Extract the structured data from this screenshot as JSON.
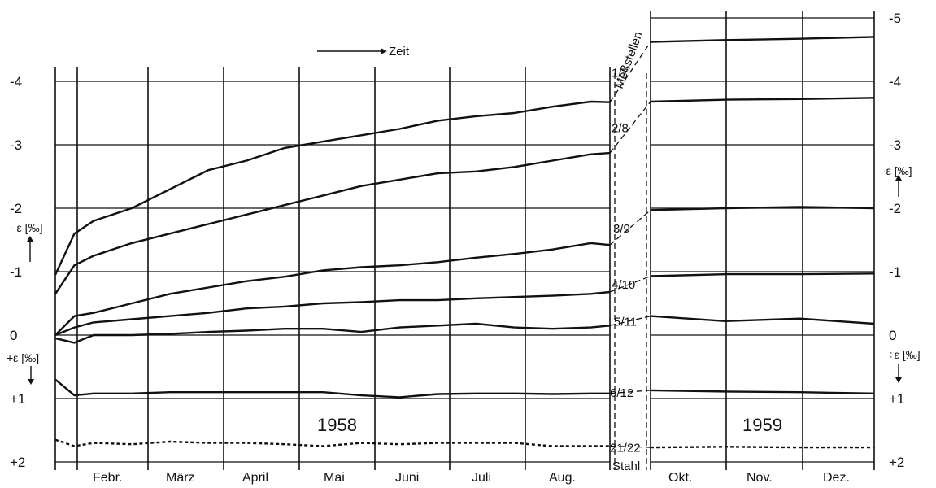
{
  "chart_data": {
    "type": "line",
    "title": "",
    "y_axis": {
      "range": [
        -5,
        2
      ],
      "inverted_note": "negative values plotted upward",
      "ticks_left": [
        "-4",
        "-3",
        "-2",
        "-1",
        "0",
        "+1",
        "+2"
      ],
      "ticks_right": [
        "-5",
        "-4",
        "-3",
        "-2",
        "-1",
        "0",
        "+1",
        "+2"
      ],
      "label_left_upper": "- ε [‰]",
      "label_left_lower": "+ε [‰]",
      "label_right_upper": "-ε [‰]",
      "label_right_lower": "÷ε [‰]"
    },
    "time_arrow_label": "Zeit",
    "months_1958": [
      "Febr.",
      "März",
      "April",
      "Mai",
      "Juni",
      "Juli",
      "Aug."
    ],
    "months_1959": [
      "Okt.",
      "Nov.",
      "Dez."
    ],
    "years": [
      "1958",
      "1959"
    ],
    "measuring_points_label": "Meßstellen",
    "steel_label": "Stahl",
    "series": [
      {
        "name": "1/7",
        "period_1958": [
          [
            0,
            -0.95
          ],
          [
            0.5,
            -1.6
          ],
          [
            1,
            -1.8
          ],
          [
            2,
            -2.0
          ],
          [
            3,
            -2.3
          ],
          [
            4,
            -2.6
          ],
          [
            5,
            -2.75
          ],
          [
            6,
            -2.95
          ],
          [
            7,
            -3.05
          ],
          [
            8,
            -3.15
          ],
          [
            9,
            -3.25
          ],
          [
            10,
            -3.38
          ],
          [
            11,
            -3.45
          ],
          [
            12,
            -3.5
          ],
          [
            13,
            -3.6
          ],
          [
            14,
            -3.68
          ],
          [
            14.5,
            -3.67
          ]
        ],
        "period_1959": [
          [
            0,
            -4.62
          ],
          [
            1,
            -4.65
          ],
          [
            2,
            -4.67
          ],
          [
            3,
            -4.7
          ]
        ]
      },
      {
        "name": "2/8",
        "period_1958": [
          [
            0,
            -0.65
          ],
          [
            0.5,
            -1.1
          ],
          [
            1,
            -1.25
          ],
          [
            2,
            -1.45
          ],
          [
            3,
            -1.6
          ],
          [
            4,
            -1.75
          ],
          [
            5,
            -1.9
          ],
          [
            6,
            -2.05
          ],
          [
            7,
            -2.2
          ],
          [
            8,
            -2.35
          ],
          [
            9,
            -2.45
          ],
          [
            10,
            -2.55
          ],
          [
            11,
            -2.58
          ],
          [
            12,
            -2.65
          ],
          [
            13,
            -2.75
          ],
          [
            14,
            -2.85
          ],
          [
            14.5,
            -2.87
          ]
        ],
        "period_1959": [
          [
            0,
            -3.68
          ],
          [
            1,
            -3.71
          ],
          [
            2,
            -3.72
          ],
          [
            3,
            -3.74
          ]
        ]
      },
      {
        "name": "3/9",
        "period_1958": [
          [
            0,
            0.0
          ],
          [
            0.5,
            -0.3
          ],
          [
            1,
            -0.35
          ],
          [
            2,
            -0.5
          ],
          [
            3,
            -0.65
          ],
          [
            4,
            -0.75
          ],
          [
            5,
            -0.85
          ],
          [
            6,
            -0.92
          ],
          [
            7,
            -1.02
          ],
          [
            8,
            -1.07
          ],
          [
            9,
            -1.1
          ],
          [
            10,
            -1.15
          ],
          [
            11,
            -1.22
          ],
          [
            12,
            -1.28
          ],
          [
            13,
            -1.35
          ],
          [
            14,
            -1.45
          ],
          [
            14.5,
            -1.42
          ]
        ],
        "period_1959": [
          [
            0,
            -1.97
          ],
          [
            1,
            -2.0
          ],
          [
            2,
            -2.02
          ],
          [
            3,
            -2.0
          ]
        ]
      },
      {
        "name": "4/10",
        "period_1958": [
          [
            0,
            0.0
          ],
          [
            0.5,
            -0.12
          ],
          [
            1,
            -0.2
          ],
          [
            2,
            -0.25
          ],
          [
            3,
            -0.3
          ],
          [
            4,
            -0.35
          ],
          [
            5,
            -0.42
          ],
          [
            6,
            -0.45
          ],
          [
            7,
            -0.5
          ],
          [
            8,
            -0.52
          ],
          [
            9,
            -0.55
          ],
          [
            10,
            -0.55
          ],
          [
            11,
            -0.58
          ],
          [
            12,
            -0.6
          ],
          [
            13,
            -0.62
          ],
          [
            14,
            -0.65
          ],
          [
            14.5,
            -0.68
          ]
        ],
        "period_1959": [
          [
            0,
            -0.93
          ],
          [
            1,
            -0.96
          ],
          [
            2,
            -0.96
          ],
          [
            3,
            -0.97
          ]
        ]
      },
      {
        "name": "5/11",
        "period_1958": [
          [
            0,
            0.05
          ],
          [
            0.5,
            0.12
          ],
          [
            1,
            0.0
          ],
          [
            2,
            0.0
          ],
          [
            3,
            -0.02
          ],
          [
            4,
            -0.05
          ],
          [
            5,
            -0.07
          ],
          [
            6,
            -0.1
          ],
          [
            7,
            -0.1
          ],
          [
            8,
            -0.05
          ],
          [
            9,
            -0.12
          ],
          [
            10,
            -0.15
          ],
          [
            11,
            -0.18
          ],
          [
            12,
            -0.12
          ],
          [
            13,
            -0.1
          ],
          [
            14,
            -0.12
          ],
          [
            14.5,
            -0.15
          ]
        ],
        "period_1959": [
          [
            0,
            -0.3
          ],
          [
            1,
            -0.22
          ],
          [
            2,
            -0.26
          ],
          [
            3,
            -0.18
          ]
        ]
      },
      {
        "name": "6/12",
        "period_1958": [
          [
            0,
            0.7
          ],
          [
            0.5,
            0.95
          ],
          [
            1,
            0.92
          ],
          [
            2,
            0.92
          ],
          [
            3,
            0.9
          ],
          [
            4,
            0.9
          ],
          [
            5,
            0.9
          ],
          [
            6,
            0.9
          ],
          [
            7,
            0.9
          ],
          [
            8,
            0.95
          ],
          [
            9,
            0.98
          ],
          [
            10,
            0.93
          ],
          [
            11,
            0.92
          ],
          [
            12,
            0.92
          ],
          [
            13,
            0.93
          ],
          [
            14,
            0.92
          ],
          [
            14.5,
            0.92
          ]
        ],
        "period_1959": [
          [
            0,
            0.87
          ],
          [
            1,
            0.89
          ],
          [
            2,
            0.9
          ],
          [
            3,
            0.92
          ]
        ]
      },
      {
        "name": "21/22",
        "style": "dotted",
        "period_1958": [
          [
            0,
            1.65
          ],
          [
            0.5,
            1.75
          ],
          [
            1,
            1.7
          ],
          [
            2,
            1.72
          ],
          [
            3,
            1.68
          ],
          [
            4,
            1.7
          ],
          [
            5,
            1.7
          ],
          [
            6,
            1.72
          ],
          [
            7,
            1.75
          ],
          [
            8,
            1.7
          ],
          [
            9,
            1.72
          ],
          [
            10,
            1.7
          ],
          [
            11,
            1.7
          ],
          [
            12,
            1.7
          ],
          [
            13,
            1.75
          ],
          [
            14,
            1.75
          ],
          [
            14.5,
            1.75
          ]
        ],
        "period_1959": [
          [
            0,
            1.77
          ],
          [
            1,
            1.76
          ],
          [
            2,
            1.77
          ],
          [
            3,
            1.77
          ]
        ]
      }
    ]
  }
}
